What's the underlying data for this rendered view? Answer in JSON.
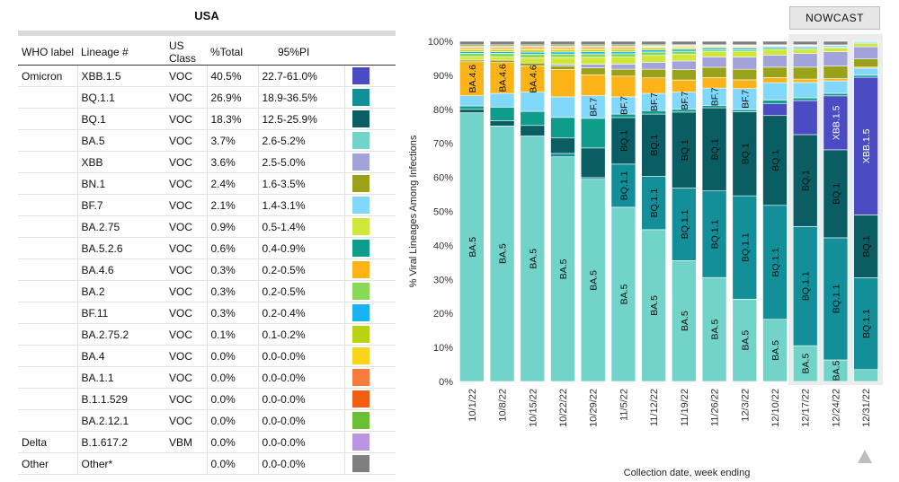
{
  "region": "USA",
  "table": {
    "headers": [
      "WHO label",
      "Lineage #",
      "US Class",
      "%Total",
      "95%PI"
    ],
    "groups": [
      {
        "who": "Omicron",
        "rows": [
          {
            "lineage": "XBB.1.5",
            "cls": "VOC",
            "pct": "40.5%",
            "pi": "22.7-61.0%",
            "color": "#4b4bc3"
          },
          {
            "lineage": "BQ.1.1",
            "cls": "VOC",
            "pct": "26.9%",
            "pi": "18.9-36.5%",
            "color": "#138f99"
          },
          {
            "lineage": "BQ.1",
            "cls": "VOC",
            "pct": "18.3%",
            "pi": "12.5-25.9%",
            "color": "#0a5e63"
          },
          {
            "lineage": "BA.5",
            "cls": "VOC",
            "pct": "3.7%",
            "pi": "2.6-5.2%",
            "color": "#72d3c8"
          },
          {
            "lineage": "XBB",
            "cls": "VOC",
            "pct": "3.6%",
            "pi": "2.5-5.0%",
            "color": "#a3a3dc"
          },
          {
            "lineage": "BN.1",
            "cls": "VOC",
            "pct": "2.4%",
            "pi": "1.6-3.5%",
            "color": "#9aa21a"
          },
          {
            "lineage": "BF.7",
            "cls": "VOC",
            "pct": "2.1%",
            "pi": "1.4-3.1%",
            "color": "#81d8fa"
          },
          {
            "lineage": "BA.2.75",
            "cls": "VOC",
            "pct": "0.9%",
            "pi": "0.5-1.4%",
            "color": "#cfe63a"
          },
          {
            "lineage": "BA.5.2.6",
            "cls": "VOC",
            "pct": "0.6%",
            "pi": "0.4-0.9%",
            "color": "#0f9c8a"
          },
          {
            "lineage": "BA.4.6",
            "cls": "VOC",
            "pct": "0.3%",
            "pi": "0.2-0.5%",
            "color": "#fbb317"
          },
          {
            "lineage": "BA.2",
            "cls": "VOC",
            "pct": "0.3%",
            "pi": "0.2-0.5%",
            "color": "#8ad858"
          },
          {
            "lineage": "BF.11",
            "cls": "VOC",
            "pct": "0.3%",
            "pi": "0.2-0.4%",
            "color": "#1bb2f2"
          },
          {
            "lineage": "BA.2.75.2",
            "cls": "VOC",
            "pct": "0.1%",
            "pi": "0.1-0.2%",
            "color": "#b9d312"
          },
          {
            "lineage": "BA.4",
            "cls": "VOC",
            "pct": "0.0%",
            "pi": "0.0-0.0%",
            "color": "#f8d51c"
          },
          {
            "lineage": "BA.1.1",
            "cls": "VOC",
            "pct": "0.0%",
            "pi": "0.0-0.0%",
            "color": "#f77b3c"
          },
          {
            "lineage": "B.1.1.529",
            "cls": "VOC",
            "pct": "0.0%",
            "pi": "0.0-0.0%",
            "color": "#f25e12"
          },
          {
            "lineage": "BA.2.12.1",
            "cls": "VOC",
            "pct": "0.0%",
            "pi": "0.0-0.0%",
            "color": "#6abf35"
          }
        ]
      },
      {
        "who": "Delta",
        "rows": [
          {
            "lineage": "B.1.617.2",
            "cls": "VBM",
            "pct": "0.0%",
            "pi": "0.0-0.0%",
            "color": "#b995e3"
          }
        ]
      },
      {
        "who": "Other",
        "rows": [
          {
            "lineage": "Other*",
            "cls": "",
            "pct": "0.0%",
            "pi": "0.0-0.0%",
            "color": "#7f7f7f"
          }
        ]
      }
    ]
  },
  "nowcast_label": "NOWCAST",
  "scroll_up_icon": "triangle-up-icon",
  "chart_data": {
    "type": "bar",
    "stacked": true,
    "xlabel": "Collection date, week ending",
    "ylabel": "% Viral Lineages Among Infections",
    "ylim": [
      0,
      100
    ],
    "yticks": [
      "0%",
      "10%",
      "20%",
      "30%",
      "40%",
      "50%",
      "60%",
      "70%",
      "80%",
      "90%",
      "100%"
    ],
    "categories": [
      "10/1/22",
      "10/8/22",
      "10/15/22",
      "10/22/22",
      "10/29/22",
      "11/5/22",
      "11/12/22",
      "11/19/22",
      "11/26/22",
      "12/3/22",
      "12/10/22",
      "12/17/22",
      "12/24/22",
      "12/31/22"
    ],
    "nowcast_categories": [
      "12/17/22",
      "12/24/22",
      "12/31/22"
    ],
    "series": [
      {
        "name": "BA.5",
        "color": "#72d3c8",
        "values": [
          79,
          74.5,
          70,
          65.5,
          58,
          50.5,
          44,
          35,
          30,
          23.5,
          18,
          10.5,
          6,
          3.5
        ]
      },
      {
        "name": "BQ.1.1",
        "color": "#138f99",
        "values": [
          0,
          0,
          0,
          1,
          0.5,
          12.5,
          15.5,
          21,
          25,
          29.5,
          33,
          35,
          34,
          27
        ]
      },
      {
        "name": "BQ.1",
        "color": "#0a5e63",
        "values": [
          1,
          1.5,
          3,
          4.5,
          8.5,
          13.5,
          18,
          22,
          24,
          24,
          26,
          27,
          24.5,
          18.5
        ]
      },
      {
        "name": "XBB.1.5",
        "color": "#4b4bc3",
        "values": [
          0,
          0,
          0,
          0,
          0,
          0,
          0,
          0,
          0,
          0,
          3.5,
          10,
          15,
          40.5
        ]
      },
      {
        "name": "BA.5.2.6",
        "color": "#0f9c8a",
        "values": [
          1,
          4,
          4,
          6,
          8.5,
          1,
          1,
          0.8,
          0.7,
          0.6,
          1,
          0.8,
          0.7,
          0.6
        ]
      },
      {
        "name": "BF.7",
        "color": "#81d8fa",
        "values": [
          3,
          4,
          5.5,
          6,
          6.5,
          5,
          5,
          5,
          5,
          6,
          5,
          4.5,
          3.5,
          2.1
        ]
      },
      {
        "name": "BA.4.6",
        "color": "#fbb317",
        "values": [
          10,
          9,
          7.5,
          8,
          6,
          6,
          4.5,
          3.5,
          3,
          2.5,
          1.5,
          1,
          0.6,
          0.3
        ]
      },
      {
        "name": "BN.1",
        "color": "#9aa21a",
        "values": [
          0.5,
          0.7,
          0.8,
          1,
          2,
          2,
          2.5,
          3,
          3,
          3,
          3,
          3.5,
          3.5,
          2.4
        ]
      },
      {
        "name": "XBB",
        "color": "#a3a3dc",
        "values": [
          0,
          0,
          0,
          0.5,
          1,
          1.5,
          2,
          2.5,
          3,
          3.5,
          3.5,
          4,
          4,
          3.6
        ]
      },
      {
        "name": "BA.2.75",
        "color": "#cfe63a",
        "values": [
          1,
          1,
          1.5,
          2,
          2,
          2,
          2,
          2,
          1.5,
          1.5,
          1.5,
          1.2,
          1,
          0.9
        ]
      },
      {
        "name": "BA.2",
        "color": "#8ad858",
        "values": [
          1,
          1,
          1,
          1,
          1,
          1,
          1,
          0.8,
          0.6,
          0.6,
          0.5,
          0.4,
          0.3,
          0.3
        ]
      },
      {
        "name": "BF.11",
        "color": "#1bb2f2",
        "values": [
          0.5,
          0.5,
          0.6,
          0.6,
          0.6,
          0.6,
          0.6,
          0.6,
          0.5,
          0.5,
          0.4,
          0.4,
          0.3,
          0.3
        ]
      },
      {
        "name": "BA.2.75.2",
        "color": "#b9d312",
        "values": [
          0.5,
          0.5,
          0.6,
          0.6,
          0.6,
          0.6,
          0.5,
          0.4,
          0.3,
          0.3,
          0.2,
          0.2,
          0.1,
          0.1
        ]
      },
      {
        "name": "BA.4",
        "color": "#f8d51c",
        "values": [
          0.5,
          0.5,
          0.5,
          0.5,
          0.4,
          0.4,
          0.3,
          0.3,
          0.2,
          0.2,
          0.1,
          0.1,
          0.05,
          0
        ]
      },
      {
        "name": "B.1.1.529",
        "color": "#f25e12",
        "values": [
          0.3,
          0.3,
          0.3,
          0.3,
          0.3,
          0.3,
          0.2,
          0.2,
          0.1,
          0.1,
          0.1,
          0.1,
          0.05,
          0
        ]
      },
      {
        "name": "BA.1.1",
        "color": "#f77b3c",
        "values": [
          0.3,
          0.3,
          0.3,
          0.3,
          0.3,
          0.3,
          0.2,
          0.2,
          0.1,
          0.1,
          0.1,
          0.1,
          0.05,
          0
        ]
      },
      {
        "name": "BA.2.12.1",
        "color": "#6abf35",
        "values": [
          0.4,
          0.4,
          0.4,
          0.4,
          0.4,
          0.4,
          0.3,
          0.2,
          0.2,
          0.2,
          0.1,
          0.1,
          0.05,
          0
        ]
      },
      {
        "name": "Other*",
        "color": "#7f7f7f",
        "values": [
          1,
          1,
          1,
          1,
          1,
          1,
          1,
          1,
          1,
          1,
          1,
          1,
          1,
          0
        ]
      }
    ],
    "bar_labels": [
      {
        "category": "10/1/22",
        "series": "BA.5",
        "text": "BA.5"
      },
      {
        "category": "10/1/22",
        "series": "BA.4.6",
        "text": "BA.4.6"
      },
      {
        "category": "10/8/22",
        "series": "BA.5",
        "text": "BA.5"
      },
      {
        "category": "10/8/22",
        "series": "BA.4.6",
        "text": "BA.4.6"
      },
      {
        "category": "10/15/22",
        "series": "BA.5",
        "text": "BA.5"
      },
      {
        "category": "10/15/22",
        "series": "BA.4.6",
        "text": "BA.4.6"
      },
      {
        "category": "10/22/22",
        "series": "BA.5",
        "text": "BA.5"
      },
      {
        "category": "10/29/22",
        "series": "BA.5",
        "text": "BA.5"
      },
      {
        "category": "10/29/22",
        "series": "BF.7",
        "text": "BF.7"
      },
      {
        "category": "11/5/22",
        "series": "BA.5",
        "text": "BA.5"
      },
      {
        "category": "11/5/22",
        "series": "BQ.1.1",
        "text": "BQ.1.1"
      },
      {
        "category": "11/5/22",
        "series": "BQ.1",
        "text": "BQ.1"
      },
      {
        "category": "11/5/22",
        "series": "BF.7",
        "text": "BF.7"
      },
      {
        "category": "11/12/22",
        "series": "BA.5",
        "text": "BA.5"
      },
      {
        "category": "11/12/22",
        "series": "BQ.1.1",
        "text": "BQ.1.1"
      },
      {
        "category": "11/12/22",
        "series": "BQ.1",
        "text": "BQ.1"
      },
      {
        "category": "11/12/22",
        "series": "BF.7",
        "text": "BF.7"
      },
      {
        "category": "11/19/22",
        "series": "BA.5",
        "text": "BA.5"
      },
      {
        "category": "11/19/22",
        "series": "BQ.1.1",
        "text": "BQ.1.1"
      },
      {
        "category": "11/19/22",
        "series": "BQ.1",
        "text": "BQ.1"
      },
      {
        "category": "11/19/22",
        "series": "BF.7",
        "text": "BF.7"
      },
      {
        "category": "11/26/22",
        "series": "BA.5",
        "text": "BA.5"
      },
      {
        "category": "11/26/22",
        "series": "BQ.1.1",
        "text": "BQ.1.1"
      },
      {
        "category": "11/26/22",
        "series": "BQ.1",
        "text": "BQ.1"
      },
      {
        "category": "11/26/22",
        "series": "BF.7",
        "text": "BF.7"
      },
      {
        "category": "12/3/22",
        "series": "BA.5",
        "text": "BA.5"
      },
      {
        "category": "12/3/22",
        "series": "BQ.1.1",
        "text": "BQ.1.1"
      },
      {
        "category": "12/3/22",
        "series": "BQ.1",
        "text": "BQ.1"
      },
      {
        "category": "12/3/22",
        "series": "BF.7",
        "text": "BF.7"
      },
      {
        "category": "12/10/22",
        "series": "BA.5",
        "text": "BA.5"
      },
      {
        "category": "12/10/22",
        "series": "BQ.1.1",
        "text": "BQ.1.1"
      },
      {
        "category": "12/10/22",
        "series": "BQ.1",
        "text": "BQ.1"
      },
      {
        "category": "12/17/22",
        "series": "BA.5",
        "text": "BA.5"
      },
      {
        "category": "12/17/22",
        "series": "BQ.1.1",
        "text": "BQ.1.1"
      },
      {
        "category": "12/17/22",
        "series": "BQ.1",
        "text": "BQ.1"
      },
      {
        "category": "12/24/22",
        "series": "BA.5",
        "text": "BA.5"
      },
      {
        "category": "12/24/22",
        "series": "BQ.1.1",
        "text": "BQ.1.1"
      },
      {
        "category": "12/24/22",
        "series": "BQ.1",
        "text": "BQ.1"
      },
      {
        "category": "12/24/22",
        "series": "XBB.1.5",
        "text": "XBB.1.5"
      },
      {
        "category": "12/31/22",
        "series": "BQ.1.1",
        "text": "BQ.1.1"
      },
      {
        "category": "12/31/22",
        "series": "BQ.1",
        "text": "BQ.1"
      },
      {
        "category": "12/31/22",
        "series": "XBB.1.5",
        "text": "XBB.1.5"
      }
    ]
  }
}
